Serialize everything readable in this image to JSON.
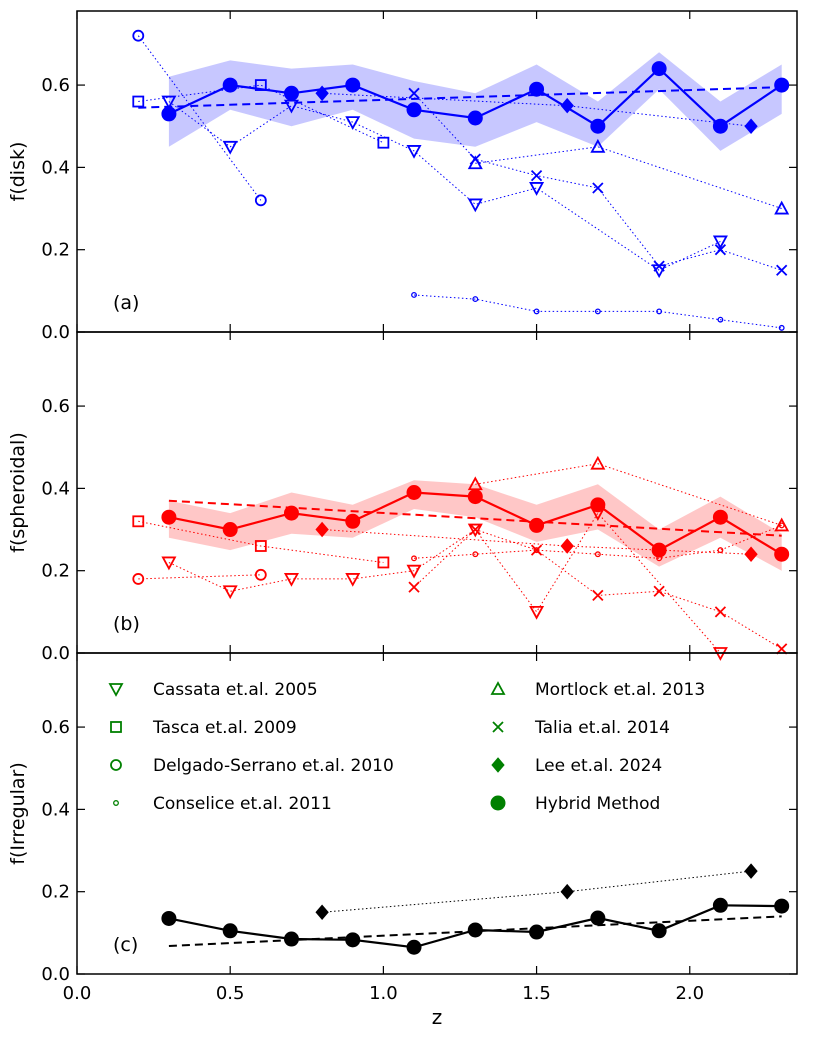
{
  "chart_data": [
    {
      "type": "line",
      "panel_label": "(a)",
      "ylabel": "f(disk)",
      "xlim": [
        0.0,
        2.35
      ],
      "ylim": [
        0.0,
        0.78
      ],
      "yticks": [
        "0.0",
        "0.2",
        "0.4",
        "0.6"
      ],
      "grid": false,
      "color": "#0000ff",
      "series": [
        {
          "name": "Cassata et.al. 2005",
          "marker": "triangle-down",
          "x": [
            0.3,
            0.5,
            0.7,
            0.9,
            1.1,
            1.3,
            1.5,
            1.9,
            2.1
          ],
          "y": [
            0.56,
            0.45,
            0.55,
            0.51,
            0.44,
            0.31,
            0.35,
            0.15,
            0.22
          ]
        },
        {
          "name": "Tasca et.al. 2009",
          "marker": "square",
          "x": [
            0.2,
            0.6,
            1.0
          ],
          "y": [
            0.56,
            0.6,
            0.46
          ]
        },
        {
          "name": "Delgado-Serrano et.al. 2010",
          "marker": "circle-open",
          "x": [
            0.2,
            0.6
          ],
          "y": [
            0.72,
            0.32
          ]
        },
        {
          "name": "Conselice et.al. 2011",
          "marker": "circle-small",
          "x": [
            1.1,
            1.3,
            1.5,
            1.7,
            1.9,
            2.1,
            2.3
          ],
          "y": [
            0.09,
            0.08,
            0.05,
            0.05,
            0.05,
            0.03,
            0.01
          ]
        },
        {
          "name": "Mortlock et.al. 2013",
          "marker": "triangle-up",
          "x": [
            1.3,
            1.7,
            2.3
          ],
          "y": [
            0.41,
            0.45,
            0.3
          ]
        },
        {
          "name": "Talia et.al. 2014",
          "marker": "x",
          "x": [
            1.1,
            1.3,
            1.5,
            1.7,
            1.9,
            2.1,
            2.3
          ],
          "y": [
            0.58,
            0.42,
            0.38,
            0.35,
            0.16,
            0.2,
            0.15
          ]
        },
        {
          "name": "Lee et.al. 2024",
          "marker": "diamond",
          "x": [
            0.8,
            1.6,
            2.2
          ],
          "y": [
            0.58,
            0.55,
            0.5
          ]
        },
        {
          "name": "Hybrid Method",
          "marker": "circle-filled",
          "x": [
            0.3,
            0.5,
            0.7,
            0.9,
            1.1,
            1.3,
            1.5,
            1.7,
            1.9,
            2.1,
            2.3
          ],
          "y": [
            0.53,
            0.6,
            0.58,
            0.6,
            0.54,
            0.52,
            0.59,
            0.5,
            0.64,
            0.5,
            0.6
          ],
          "lower": [
            0.45,
            0.54,
            0.5,
            0.54,
            0.47,
            0.45,
            0.51,
            0.45,
            0.59,
            0.44,
            0.53
          ],
          "upper": [
            0.62,
            0.66,
            0.64,
            0.65,
            0.61,
            0.58,
            0.65,
            0.56,
            0.68,
            0.56,
            0.65
          ]
        }
      ],
      "fit": {
        "x": [
          0.2,
          2.3
        ],
        "y": [
          0.545,
          0.595
        ]
      }
    },
    {
      "type": "line",
      "panel_label": "(b)",
      "ylabel": "f(spheroidal)",
      "xlim": [
        0.0,
        2.35
      ],
      "ylim": [
        0.0,
        0.78
      ],
      "yticks": [
        "0.0",
        "0.2",
        "0.4",
        "0.6"
      ],
      "grid": false,
      "color": "#ff0000",
      "series": [
        {
          "name": "Cassata et.al. 2005",
          "marker": "triangle-down",
          "x": [
            0.3,
            0.5,
            0.7,
            0.9,
            1.1,
            1.3,
            1.5,
            1.7,
            2.1
          ],
          "y": [
            0.22,
            0.15,
            0.18,
            0.18,
            0.2,
            0.3,
            0.1,
            0.34,
            0.0
          ]
        },
        {
          "name": "Tasca et.al. 2009",
          "marker": "square",
          "x": [
            0.2,
            0.6,
            1.0
          ],
          "y": [
            0.32,
            0.26,
            0.22
          ]
        },
        {
          "name": "Delgado-Serrano et.al. 2010",
          "marker": "circle-open",
          "x": [
            0.2,
            0.6
          ],
          "y": [
            0.18,
            0.19
          ]
        },
        {
          "name": "Conselice et.al. 2011",
          "marker": "circle-small",
          "x": [
            1.1,
            1.3,
            1.5,
            1.7,
            1.9,
            2.1,
            2.3
          ],
          "y": [
            0.23,
            0.24,
            0.25,
            0.24,
            0.23,
            0.25,
            0.31
          ]
        },
        {
          "name": "Mortlock et.al. 2013",
          "marker": "triangle-up",
          "x": [
            1.3,
            1.7,
            2.3
          ],
          "y": [
            0.41,
            0.46,
            0.31
          ]
        },
        {
          "name": "Talia et.al. 2014",
          "marker": "x",
          "x": [
            1.1,
            1.3,
            1.5,
            1.7,
            1.9,
            2.1,
            2.3
          ],
          "y": [
            0.16,
            0.3,
            0.25,
            0.14,
            0.15,
            0.1,
            0.01
          ]
        },
        {
          "name": "Lee et.al. 2024",
          "marker": "diamond",
          "x": [
            0.8,
            1.6,
            2.2
          ],
          "y": [
            0.3,
            0.26,
            0.24
          ]
        },
        {
          "name": "Hybrid Method",
          "marker": "circle-filled",
          "x": [
            0.3,
            0.5,
            0.7,
            0.9,
            1.1,
            1.3,
            1.5,
            1.7,
            1.9,
            2.1,
            2.3
          ],
          "y": [
            0.33,
            0.3,
            0.34,
            0.32,
            0.39,
            0.38,
            0.31,
            0.36,
            0.25,
            0.33,
            0.24
          ],
          "lower": [
            0.28,
            0.25,
            0.29,
            0.28,
            0.35,
            0.33,
            0.27,
            0.3,
            0.21,
            0.28,
            0.2
          ],
          "upper": [
            0.37,
            0.34,
            0.39,
            0.36,
            0.42,
            0.41,
            0.36,
            0.41,
            0.3,
            0.38,
            0.29
          ]
        }
      ],
      "fit": {
        "x": [
          0.3,
          2.3
        ],
        "y": [
          0.37,
          0.285
        ]
      }
    },
    {
      "type": "line",
      "panel_label": "(c)",
      "ylabel": "f(Irregular)",
      "xlabel": "z",
      "xlim": [
        0.0,
        2.35
      ],
      "ylim": [
        0.0,
        0.78
      ],
      "xticks": [
        "0.0",
        "0.5",
        "1.0",
        "1.5",
        "2.0"
      ],
      "yticks": [
        "0.0",
        "0.2",
        "0.4",
        "0.6"
      ],
      "grid": false,
      "color": "#000000",
      "series": [
        {
          "name": "Lee et.al. 2024",
          "marker": "diamond",
          "x": [
            0.8,
            1.6,
            2.2
          ],
          "y": [
            0.15,
            0.2,
            0.25
          ]
        },
        {
          "name": "Hybrid Method",
          "marker": "circle-filled",
          "x": [
            0.3,
            0.5,
            0.7,
            0.9,
            1.1,
            1.3,
            1.5,
            1.7,
            1.9,
            2.1,
            2.3
          ],
          "y": [
            0.135,
            0.105,
            0.085,
            0.083,
            0.065,
            0.107,
            0.102,
            0.136,
            0.105,
            0.167,
            0.165
          ]
        }
      ],
      "fit": {
        "x": [
          0.3,
          2.3
        ],
        "y": [
          0.068,
          0.14
        ]
      },
      "legend": {
        "placement": "top",
        "color": "#008000",
        "entries": [
          {
            "label": "Cassata et.al. 2005",
            "marker": "triangle-down"
          },
          {
            "label": "Tasca et.al. 2009",
            "marker": "square"
          },
          {
            "label": "Delgado-Serrano et.al. 2010",
            "marker": "circle-open"
          },
          {
            "label": "Conselice et.al. 2011",
            "marker": "circle-small"
          },
          {
            "label": "Mortlock et.al. 2013",
            "marker": "triangle-up"
          },
          {
            "label": "Talia et.al. 2014",
            "marker": "x"
          },
          {
            "label": "Lee et.al. 2024",
            "marker": "diamond"
          },
          {
            "label": "Hybrid Method",
            "marker": "circle-filled"
          }
        ]
      }
    }
  ]
}
